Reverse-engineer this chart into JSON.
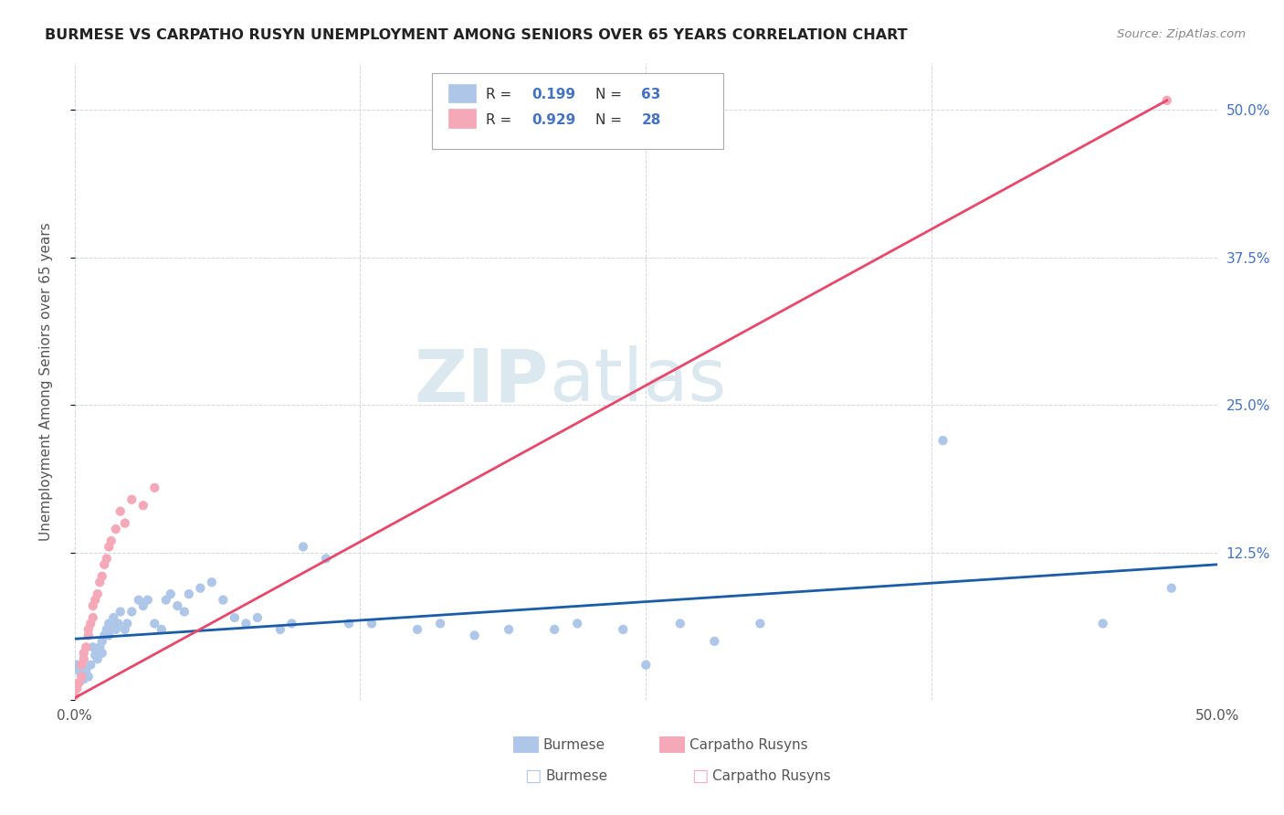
{
  "title": "BURMESE VS CARPATHO RUSYN UNEMPLOYMENT AMONG SENIORS OVER 65 YEARS CORRELATION CHART",
  "source": "Source: ZipAtlas.com",
  "ylabel": "Unemployment Among Seniors over 65 years",
  "xlim": [
    0.0,
    0.5
  ],
  "ylim": [
    0.0,
    0.54
  ],
  "burmese_color": "#aec6e8",
  "carpatho_color": "#f4a8b8",
  "burmese_line_color": "#1a5ca8",
  "carpatho_line_color": "#e8476a",
  "legend_text_color": "#4472c4",
  "watermark_color": "#dce8f0",
  "background_color": "#ffffff",
  "burmese_x": [
    0.001,
    0.002,
    0.003,
    0.004,
    0.005,
    0.005,
    0.006,
    0.007,
    0.008,
    0.009,
    0.01,
    0.01,
    0.011,
    0.012,
    0.012,
    0.013,
    0.014,
    0.015,
    0.015,
    0.016,
    0.017,
    0.018,
    0.019,
    0.02,
    0.022,
    0.023,
    0.025,
    0.028,
    0.03,
    0.032,
    0.035,
    0.038,
    0.04,
    0.042,
    0.045,
    0.048,
    0.05,
    0.055,
    0.06,
    0.065,
    0.07,
    0.075,
    0.08,
    0.09,
    0.095,
    0.1,
    0.11,
    0.12,
    0.13,
    0.15,
    0.16,
    0.175,
    0.19,
    0.21,
    0.22,
    0.24,
    0.25,
    0.265,
    0.28,
    0.3,
    0.38,
    0.45,
    0.48
  ],
  "burmese_y": [
    0.03,
    0.025,
    0.022,
    0.018,
    0.025,
    0.02,
    0.02,
    0.03,
    0.045,
    0.038,
    0.035,
    0.04,
    0.045,
    0.04,
    0.05,
    0.055,
    0.06,
    0.055,
    0.065,
    0.06,
    0.07,
    0.06,
    0.065,
    0.075,
    0.06,
    0.065,
    0.075,
    0.085,
    0.08,
    0.085,
    0.065,
    0.06,
    0.085,
    0.09,
    0.08,
    0.075,
    0.09,
    0.095,
    0.1,
    0.085,
    0.07,
    0.065,
    0.07,
    0.06,
    0.065,
    0.13,
    0.12,
    0.065,
    0.065,
    0.06,
    0.065,
    0.055,
    0.06,
    0.06,
    0.065,
    0.06,
    0.03,
    0.065,
    0.05,
    0.065,
    0.22,
    0.065,
    0.095
  ],
  "carpatho_x": [
    0.0,
    0.001,
    0.002,
    0.003,
    0.003,
    0.004,
    0.004,
    0.005,
    0.006,
    0.006,
    0.007,
    0.008,
    0.008,
    0.009,
    0.01,
    0.011,
    0.012,
    0.013,
    0.014,
    0.015,
    0.016,
    0.018,
    0.02,
    0.022,
    0.025,
    0.03,
    0.035,
    0.478
  ],
  "carpatho_y": [
    0.004,
    0.01,
    0.015,
    0.02,
    0.03,
    0.035,
    0.04,
    0.045,
    0.055,
    0.06,
    0.065,
    0.07,
    0.08,
    0.085,
    0.09,
    0.1,
    0.105,
    0.115,
    0.12,
    0.13,
    0.135,
    0.145,
    0.16,
    0.15,
    0.17,
    0.165,
    0.18,
    0.508
  ],
  "burmese_line_x": [
    0.0,
    0.5
  ],
  "burmese_line_y": [
    0.052,
    0.115
  ],
  "carpatho_line_x": [
    0.0,
    0.478
  ],
  "carpatho_line_y": [
    0.002,
    0.508
  ]
}
